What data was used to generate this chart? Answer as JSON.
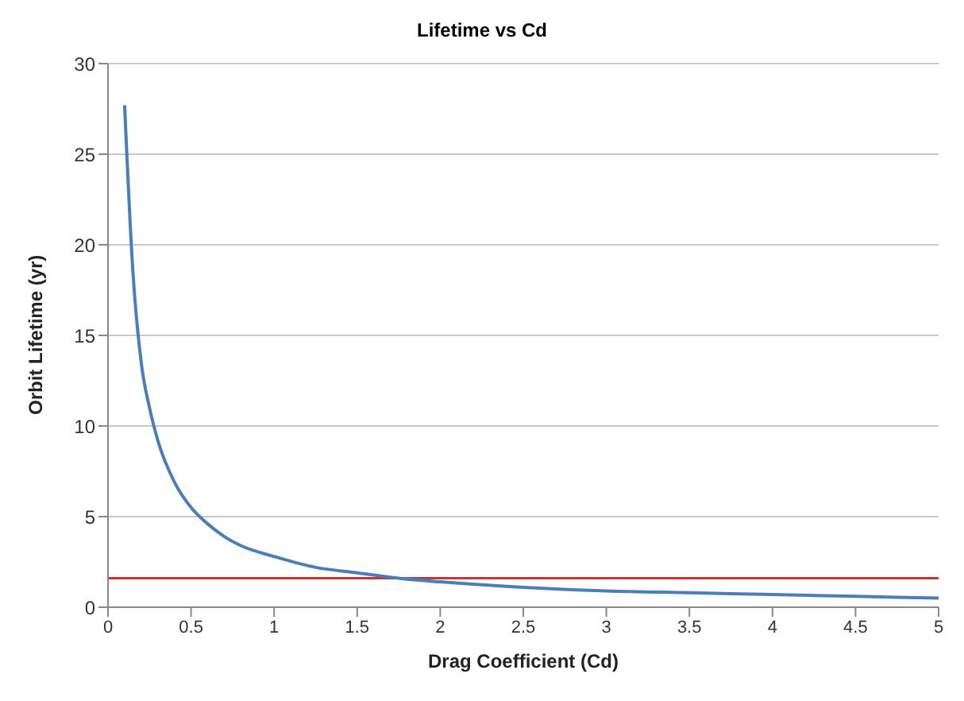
{
  "chart_data": {
    "type": "line",
    "title": "Lifetime vs Cd",
    "xlabel": "Drag Coefficient (Cd)",
    "ylabel": "Orbit Lifetime (yr)",
    "x": [
      0.1,
      0.15,
      0.2,
      0.25,
      0.3,
      0.4,
      0.5,
      0.6,
      0.7,
      0.8,
      1,
      1.25,
      1.5,
      1.75,
      2,
      2.5,
      3,
      3.5,
      4,
      4.5,
      5
    ],
    "series": [
      {
        "color": "#4a7ebb",
        "values": [
          27.7,
          18.5,
          13.5,
          11,
          9.2,
          6.9,
          5.5,
          4.6,
          3.9,
          3.4,
          2.8,
          2.2,
          1.9,
          1.6,
          1.4,
          1.1,
          0.9,
          0.8,
          0.7,
          0.6,
          0.5
        ]
      }
    ],
    "xlim": [
      0,
      5
    ],
    "xticks": [
      0,
      0.5,
      1,
      1.5,
      2,
      2.5,
      3,
      3.5,
      4,
      4.5,
      5
    ],
    "ylim": [
      0,
      30
    ],
    "yticks": [
      0,
      5,
      10,
      15,
      20,
      25,
      30
    ],
    "grid": "y",
    "marker": "none",
    "line_style": "solid",
    "ref_lines": [
      {
        "axis": "y",
        "value": 1.6,
        "color": "#d03030"
      }
    ]
  }
}
